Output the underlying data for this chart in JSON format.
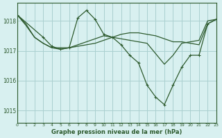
{
  "title": "Graphe pression niveau de la mer (hPa)",
  "background_color": "#d8f0f0",
  "grid_color": "#aad0d0",
  "line_color": "#2d5a2d",
  "marker_color": "#2d5a2d",
  "xlim": [
    0,
    23
  ],
  "ylim": [
    1014.6,
    1018.6
  ],
  "yticks": [
    1015,
    1016,
    1017,
    1018
  ],
  "xticks": [
    0,
    1,
    2,
    3,
    4,
    5,
    6,
    7,
    8,
    9,
    10,
    11,
    12,
    13,
    14,
    15,
    16,
    17,
    18,
    19,
    20,
    21,
    22,
    23
  ],
  "series": [
    {
      "x": [
        0,
        1,
        2,
        3,
        4,
        5,
        6,
        7,
        8,
        9,
        10,
        11,
        12,
        13,
        14,
        15,
        16,
        17,
        18,
        19,
        20,
        21,
        22,
        23
      ],
      "y": [
        1018.2,
        1017.9,
        1017.45,
        1017.25,
        1017.1,
        1017.1,
        1017.1,
        1017.15,
        1017.2,
        1017.25,
        1017.35,
        1017.45,
        1017.55,
        1017.6,
        1017.6,
        1017.55,
        1017.5,
        1017.4,
        1017.3,
        1017.3,
        1017.25,
        1017.2,
        1017.9,
        1018.05
      ],
      "has_markers": false
    },
    {
      "x": [
        0,
        1,
        2,
        3,
        4,
        5,
        6,
        7,
        8,
        9,
        10,
        11,
        12,
        13,
        14,
        15,
        16,
        17,
        18,
        19,
        20,
        21,
        22,
        23
      ],
      "y": [
        1018.2,
        1017.85,
        1017.45,
        1017.25,
        1017.1,
        1017.05,
        1017.1,
        1017.2,
        1017.3,
        1017.4,
        1017.5,
        1017.45,
        1017.4,
        1017.35,
        1017.3,
        1017.25,
        1016.9,
        1016.55,
        1016.85,
        1017.25,
        1017.3,
        1017.35,
        1018.0,
        1018.05
      ],
      "has_markers": false
    },
    {
      "x": [
        0,
        3,
        4,
        5,
        6,
        7,
        8,
        9,
        10,
        11,
        12,
        13,
        14,
        15,
        16,
        17,
        18,
        19,
        20,
        21,
        22,
        23
      ],
      "y": [
        1018.2,
        1017.45,
        1017.15,
        1017.05,
        1017.1,
        1018.1,
        1018.35,
        1018.05,
        1017.55,
        1017.45,
        1017.2,
        1016.85,
        1016.6,
        1015.85,
        1015.45,
        1015.2,
        1015.85,
        1016.45,
        1016.85,
        1016.85,
        1017.9,
        1018.05
      ],
      "has_markers": true
    }
  ]
}
